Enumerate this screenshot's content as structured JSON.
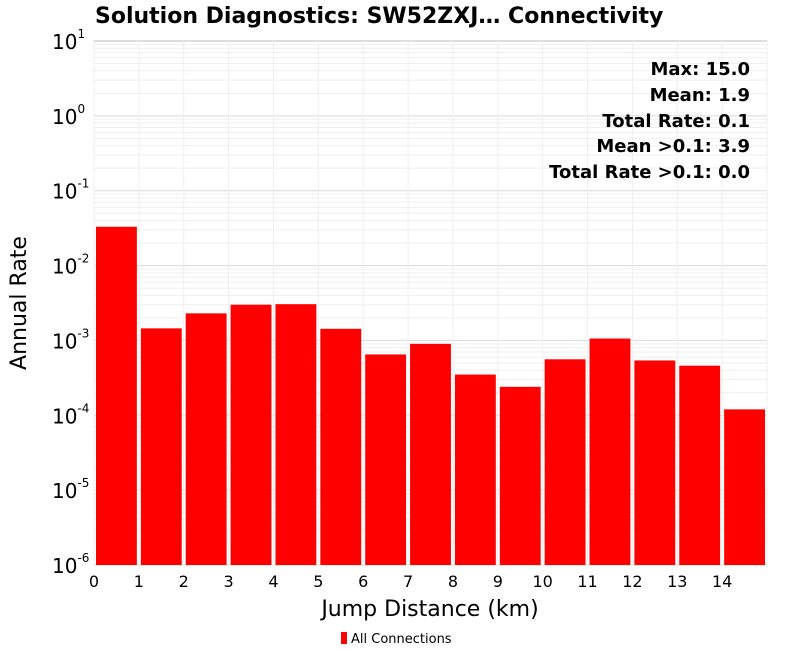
{
  "chart_data": {
    "type": "bar",
    "title": "Solution Diagnostics: SW52ZXJ… Connectivity",
    "xlabel": "Jump Distance (km)",
    "ylabel": "Annual Rate",
    "x_ticks": [
      "0",
      "1",
      "2",
      "3",
      "4",
      "5",
      "6",
      "7",
      "8",
      "9",
      "10",
      "11",
      "12",
      "13",
      "14"
    ],
    "xlim": [
      0,
      15
    ],
    "yscale": "log",
    "ylim": [
      1e-06,
      10
    ],
    "y_ticks": [
      {
        "base": "10",
        "exp": "-6"
      },
      {
        "base": "10",
        "exp": "-5"
      },
      {
        "base": "10",
        "exp": "-4"
      },
      {
        "base": "10",
        "exp": "-3"
      },
      {
        "base": "10",
        "exp": "-2"
      },
      {
        "base": "10",
        "exp": "-1"
      },
      {
        "base": "10",
        "exp": "0"
      },
      {
        "base": "10",
        "exp": "1"
      }
    ],
    "grid": true,
    "bin_starts": [
      0,
      1,
      2,
      3,
      4,
      5,
      6,
      7,
      8,
      9,
      10,
      11,
      12,
      13,
      14
    ],
    "series": [
      {
        "name": "All Connections",
        "color": "#ff0000",
        "values": [
          0.033,
          0.00145,
          0.0023,
          0.003,
          0.00305,
          0.00143,
          0.00065,
          0.0009,
          0.00035,
          0.00024,
          0.00056,
          0.00106,
          0.00054,
          0.00046,
          0.00012
        ]
      }
    ],
    "annotations": [
      "Max: 15.0",
      "Mean: 1.9",
      "Total Rate: 0.1",
      "Mean >0.1: 3.9",
      "Total Rate >0.1: 0.0"
    ],
    "legend_position": "bottom-center"
  }
}
